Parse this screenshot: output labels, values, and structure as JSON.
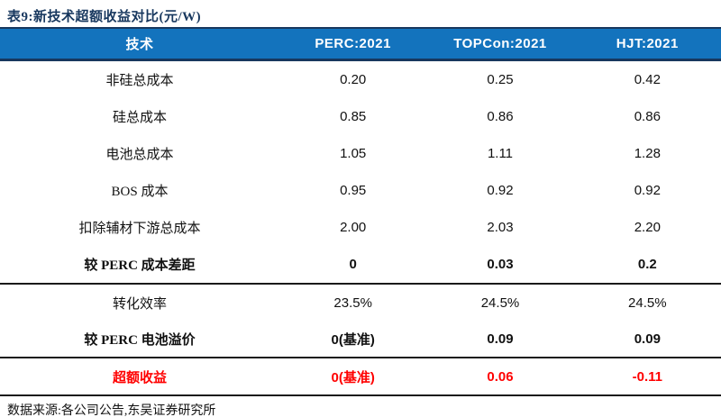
{
  "title": "表9:新技术超额收益对比(元/W)",
  "source": "数据来源:各公司公告,东吴证券研究所",
  "colors": {
    "header_bg": "#1373BD",
    "header_border": "#17375E",
    "title_text": "#17375E",
    "emphasis_red": "#FF0000",
    "body_text": "#111111"
  },
  "table": {
    "columns": {
      "c0": "技术",
      "c1": "PERC:2021",
      "c2": "TOPCon:2021",
      "c3": "HJT:2021"
    },
    "rows": [
      {
        "label": "非硅总成本",
        "values": [
          "0.20",
          "0.25",
          "0.42"
        ],
        "emphasis": "none"
      },
      {
        "label": "硅总成本",
        "values": [
          "0.85",
          "0.86",
          "0.86"
        ],
        "emphasis": "none"
      },
      {
        "label": "电池总成本",
        "values": [
          "1.05",
          "1.11",
          "1.28"
        ],
        "emphasis": "none"
      },
      {
        "label": "BOS 成本",
        "values": [
          "0.95",
          "0.92",
          "0.92"
        ],
        "emphasis": "none"
      },
      {
        "label": "扣除辅材下游总成本",
        "values": [
          "2.00",
          "2.03",
          "2.20"
        ],
        "emphasis": "none"
      },
      {
        "label": "较 PERC 成本差距",
        "values": [
          "0",
          "0.03",
          "0.2"
        ],
        "emphasis": "bold"
      },
      {
        "label": "转化效率",
        "values": [
          "23.5%",
          "24.5%",
          "24.5%"
        ],
        "emphasis": "none"
      },
      {
        "label": "较 PERC 电池溢价",
        "values": [
          "0(基准)",
          "0.09",
          "0.09"
        ],
        "emphasis": "bold"
      },
      {
        "label": "超额收益",
        "values": [
          "0(基准)",
          "0.06",
          "-0.11"
        ],
        "emphasis": "bold-red"
      }
    ]
  }
}
